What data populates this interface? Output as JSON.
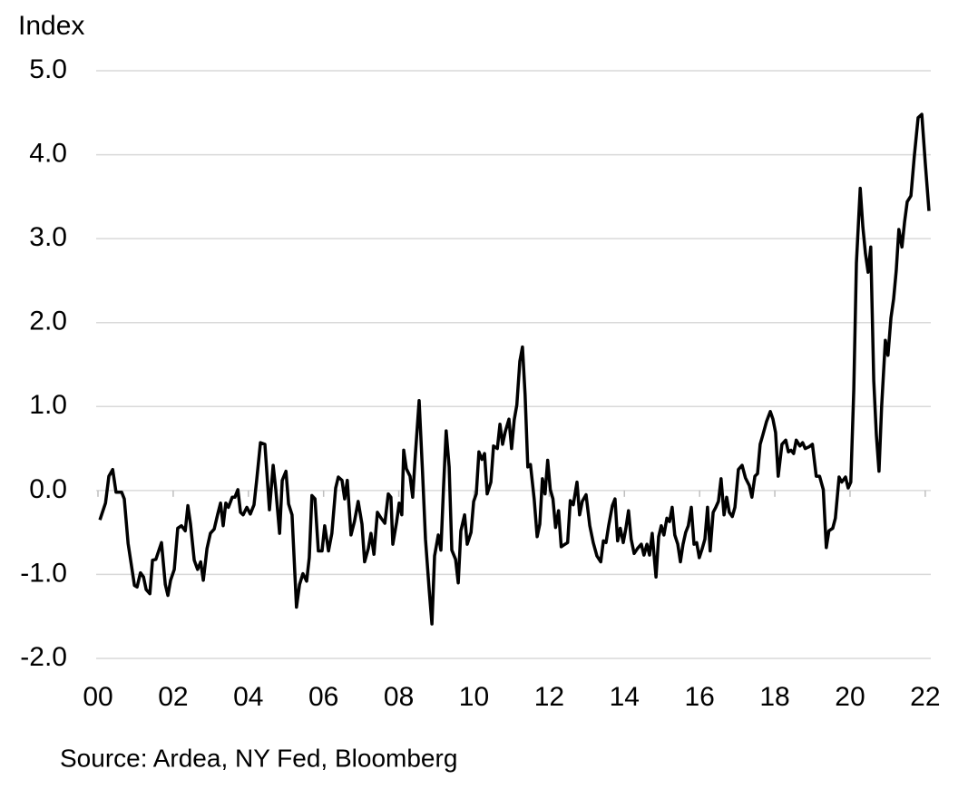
{
  "chart_data": {
    "type": "line",
    "ylabel": "Index",
    "source": "Source: Ardea, NY Fed, Bloomberg",
    "color": "#000000",
    "grid": true,
    "ylim": [
      -2,
      5
    ],
    "yticks": [
      {
        "value": -2,
        "label": "-2.0"
      },
      {
        "value": -1,
        "label": "-1.0"
      },
      {
        "value": 0,
        "label": "0.0"
      },
      {
        "value": 1,
        "label": "1.0"
      },
      {
        "value": 2,
        "label": "2.0"
      },
      {
        "value": 3,
        "label": "3.0"
      },
      {
        "value": 4,
        "label": "4.0"
      },
      {
        "value": 5,
        "label": "5.0"
      }
    ],
    "xlim": [
      0,
      22.1
    ],
    "xticks": [
      {
        "value": 0,
        "label": "00"
      },
      {
        "value": 2,
        "label": "02"
      },
      {
        "value": 4,
        "label": "04"
      },
      {
        "value": 6,
        "label": "06"
      },
      {
        "value": 8,
        "label": "08"
      },
      {
        "value": 10,
        "label": "10"
      },
      {
        "value": 12,
        "label": "12"
      },
      {
        "value": 14,
        "label": "14"
      },
      {
        "value": 16,
        "label": "16"
      },
      {
        "value": 18,
        "label": "18"
      },
      {
        "value": 20,
        "label": "20"
      },
      {
        "value": 22,
        "label": "22"
      }
    ],
    "x": [
      0.05,
      0.2,
      0.29,
      0.39,
      0.48,
      0.63,
      0.7,
      0.8,
      0.97,
      1.04,
      1.13,
      1.21,
      1.28,
      1.38,
      1.45,
      1.54,
      1.69,
      1.79,
      1.86,
      1.93,
      2.03,
      2.12,
      2.22,
      2.32,
      2.39,
      2.46,
      2.56,
      2.65,
      2.73,
      2.8,
      2.9,
      2.99,
      3.09,
      3.18,
      3.26,
      3.33,
      3.4,
      3.47,
      3.57,
      3.64,
      3.72,
      3.79,
      3.86,
      3.96,
      4.05,
      4.15,
      4.22,
      4.32,
      4.44,
      4.56,
      4.66,
      4.73,
      4.83,
      4.9,
      5.0,
      5.07,
      5.16,
      5.28,
      5.36,
      5.45,
      5.55,
      5.62,
      5.69,
      5.77,
      5.86,
      5.96,
      6.03,
      6.13,
      6.22,
      6.32,
      6.39,
      6.49,
      6.56,
      6.63,
      6.73,
      6.82,
      6.92,
      7.02,
      7.09,
      7.19,
      7.26,
      7.34,
      7.43,
      7.53,
      7.63,
      7.72,
      7.79,
      7.84,
      7.94,
      8.01,
      8.08,
      8.13,
      8.2,
      8.3,
      8.37,
      8.44,
      8.54,
      8.63,
      8.71,
      8.81,
      8.88,
      8.95,
      9.05,
      9.12,
      9.19,
      9.26,
      9.34,
      9.41,
      9.51,
      9.58,
      9.65,
      9.75,
      9.82,
      9.92,
      9.99,
      10.06,
      10.13,
      10.21,
      10.28,
      10.35,
      10.45,
      10.52,
      10.62,
      10.69,
      10.76,
      10.83,
      10.93,
      11.0,
      11.07,
      11.14,
      11.22,
      11.29,
      11.36,
      11.43,
      11.5,
      11.6,
      11.68,
      11.75,
      11.82,
      11.89,
      11.96,
      12.03,
      12.1,
      12.17,
      12.25,
      12.32,
      12.42,
      12.49,
      12.56,
      12.64,
      12.74,
      12.81,
      12.88,
      12.98,
      13.08,
      13.17,
      13.27,
      13.37,
      13.44,
      13.51,
      13.58,
      13.68,
      13.75,
      13.82,
      13.89,
      13.97,
      14.04,
      14.11,
      14.18,
      14.26,
      14.35,
      14.45,
      14.52,
      14.6,
      14.67,
      14.74,
      14.84,
      14.91,
      14.98,
      15.05,
      15.13,
      15.2,
      15.27,
      15.34,
      15.42,
      15.49,
      15.56,
      15.63,
      15.7,
      15.78,
      15.85,
      15.92,
      15.99,
      16.07,
      16.14,
      16.21,
      16.28,
      16.36,
      16.43,
      16.5,
      16.57,
      16.65,
      16.72,
      16.79,
      16.87,
      16.94,
      17.03,
      17.13,
      17.22,
      17.32,
      17.39,
      17.47,
      17.54,
      17.61,
      17.68,
      17.78,
      17.88,
      17.95,
      18.02,
      18.09,
      18.19,
      18.29,
      18.36,
      18.43,
      18.5,
      18.57,
      18.67,
      18.74,
      18.81,
      18.91,
      19.0,
      19.1,
      19.19,
      19.29,
      19.37,
      19.44,
      19.54,
      19.61,
      19.71,
      19.78,
      19.88,
      19.95,
      20.02,
      20.1,
      20.17,
      20.27,
      20.34,
      20.41,
      20.48,
      20.55,
      20.63,
      20.7,
      20.77,
      20.84,
      20.94,
      21.01,
      21.09,
      21.16,
      21.23,
      21.3,
      21.38,
      21.45,
      21.52,
      21.62,
      21.71,
      21.81,
      21.91,
      22.0,
      22.1
    ],
    "values": [
      -0.35,
      -0.15,
      0.17,
      0.25,
      -0.02,
      -0.02,
      -0.1,
      -0.63,
      -1.13,
      -1.15,
      -0.98,
      -1.03,
      -1.18,
      -1.23,
      -0.83,
      -0.82,
      -0.62,
      -1.12,
      -1.25,
      -1.07,
      -0.94,
      -0.45,
      -0.42,
      -0.48,
      -0.18,
      -0.4,
      -0.83,
      -0.94,
      -0.85,
      -1.07,
      -0.69,
      -0.51,
      -0.46,
      -0.29,
      -0.15,
      -0.42,
      -0.15,
      -0.2,
      -0.08,
      -0.08,
      0.01,
      -0.26,
      -0.29,
      -0.2,
      -0.28,
      -0.17,
      0.12,
      0.57,
      0.55,
      -0.23,
      0.3,
      0.01,
      -0.51,
      0.12,
      0.23,
      -0.16,
      -0.29,
      -1.39,
      -1.12,
      -0.99,
      -1.08,
      -0.8,
      -0.06,
      -0.1,
      -0.72,
      -0.72,
      -0.42,
      -0.72,
      -0.51,
      0.03,
      0.16,
      0.12,
      -0.1,
      0.12,
      -0.53,
      -0.37,
      -0.13,
      -0.4,
      -0.85,
      -0.69,
      -0.51,
      -0.76,
      -0.26,
      -0.33,
      -0.39,
      -0.04,
      -0.08,
      -0.64,
      -0.38,
      -0.15,
      -0.29,
      0.48,
      0.26,
      0.17,
      -0.08,
      0.42,
      1.07,
      0.23,
      -0.58,
      -1.2,
      -1.59,
      -0.78,
      -0.53,
      -0.71,
      0.04,
      0.71,
      0.28,
      -0.71,
      -0.82,
      -1.1,
      -0.48,
      -0.29,
      -0.64,
      -0.5,
      -0.13,
      -0.04,
      0.46,
      0.37,
      0.44,
      -0.04,
      0.1,
      0.53,
      0.5,
      0.79,
      0.55,
      0.7,
      0.85,
      0.5,
      0.84,
      1.02,
      1.54,
      1.71,
      1.14,
      0.28,
      0.31,
      -0.1,
      -0.55,
      -0.4,
      0.14,
      -0.04,
      0.36,
      0.01,
      -0.1,
      -0.44,
      -0.24,
      -0.67,
      -0.64,
      -0.62,
      -0.12,
      -0.17,
      0.1,
      -0.29,
      -0.13,
      -0.05,
      -0.42,
      -0.62,
      -0.78,
      -0.85,
      -0.6,
      -0.62,
      -0.42,
      -0.18,
      -0.1,
      -0.6,
      -0.45,
      -0.62,
      -0.45,
      -0.24,
      -0.58,
      -0.75,
      -0.69,
      -0.64,
      -0.77,
      -0.64,
      -0.77,
      -0.51,
      -1.03,
      -0.55,
      -0.42,
      -0.53,
      -0.33,
      -0.37,
      -0.2,
      -0.53,
      -0.64,
      -0.85,
      -0.64,
      -0.5,
      -0.42,
      -0.2,
      -0.64,
      -0.62,
      -0.8,
      -0.69,
      -0.58,
      -0.2,
      -0.72,
      -0.26,
      -0.2,
      -0.13,
      0.14,
      -0.29,
      -0.08,
      -0.26,
      -0.31,
      -0.2,
      0.25,
      0.3,
      0.15,
      0.06,
      -0.08,
      0.17,
      0.2,
      0.55,
      0.66,
      0.82,
      0.94,
      0.85,
      0.69,
      0.17,
      0.55,
      0.6,
      0.46,
      0.48,
      0.44,
      0.6,
      0.53,
      0.57,
      0.5,
      0.52,
      0.55,
      0.17,
      0.17,
      0.01,
      -0.68,
      -0.48,
      -0.45,
      -0.33,
      0.16,
      0.1,
      0.16,
      0.03,
      0.1,
      1.2,
      2.71,
      3.6,
      3.14,
      2.82,
      2.6,
      2.9,
      1.31,
      0.66,
      0.23,
      1.0,
      1.79,
      1.61,
      2.06,
      2.28,
      2.62,
      3.11,
      2.9,
      3.2,
      3.44,
      3.51,
      3.98,
      4.44,
      4.48,
      3.9,
      3.33
    ]
  }
}
